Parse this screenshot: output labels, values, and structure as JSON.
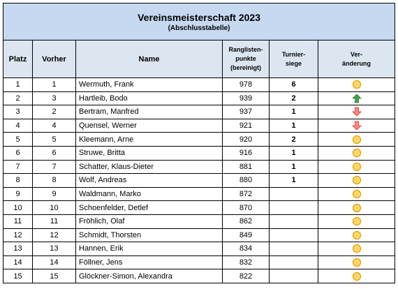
{
  "header": {
    "title": "Vereinsmeisterschaft 2023",
    "subtitle": "(Abschlusstabelle)"
  },
  "table": {
    "columns": [
      [
        "Platz"
      ],
      [
        "Vorher"
      ],
      [
        "Name"
      ],
      [
        "Ranglisten-",
        "punkte",
        "(bereinigt)"
      ],
      [
        "Turnier-",
        "siege"
      ],
      [
        "Ver-",
        "änderung"
      ]
    ],
    "rows": [
      [
        1,
        1,
        "Wermuth, Frank",
        978,
        6
      ],
      [
        2,
        3,
        "Hartleib, Bodo",
        939,
        2
      ],
      [
        3,
        2,
        "Bertram, Manfred",
        937,
        1
      ],
      [
        4,
        4,
        "Quensel, Werner",
        921,
        1
      ],
      [
        5,
        5,
        "Kleemann, Arne",
        920,
        2
      ],
      [
        6,
        6,
        "Struwe, Britta",
        916,
        1
      ],
      [
        7,
        7,
        "Schatter, Klaus-Dieter",
        881,
        1
      ],
      [
        8,
        8,
        "Wolf, Andreas",
        880,
        1
      ],
      [
        9,
        9,
        "Waldmann, Marko",
        872
      ],
      [
        10,
        10,
        "Schoenfelder, Detlef",
        870
      ],
      [
        11,
        11,
        "Fröhlich, Olaf",
        862
      ],
      [
        12,
        12,
        "Schmidt, Thorsten",
        849
      ],
      [
        13,
        13,
        "Hannen, Erik",
        834
      ],
      [
        14,
        14,
        "Föllner, Jens",
        832
      ],
      [
        15,
        15,
        "Glöckner-Simon, Alexandra",
        822
      ]
    ]
  }
}
